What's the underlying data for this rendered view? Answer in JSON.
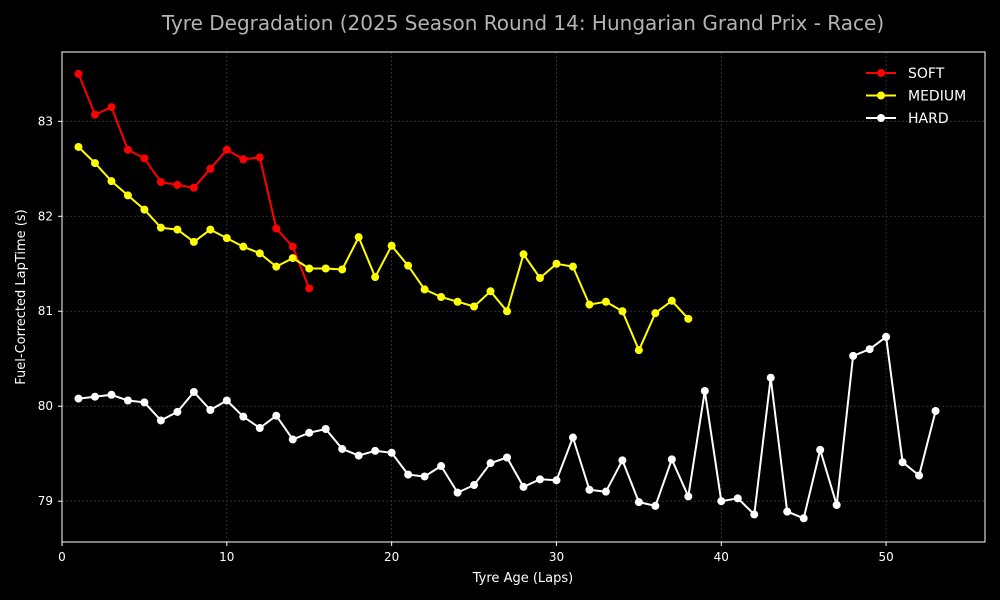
{
  "chart_data": {
    "type": "line",
    "title": "Tyre Degradation (2025 Season Round 14: Hungarian Grand Prix - Race)",
    "xlabel": "Tyre Age (Laps)",
    "ylabel": "Fuel-Corrected LapTime (s)",
    "xlim": [
      0,
      56
    ],
    "ylim": [
      78.57,
      83.73
    ],
    "xticks": [
      0,
      10,
      20,
      30,
      40,
      50
    ],
    "yticks": [
      79,
      80,
      81,
      82,
      83
    ],
    "grid": true,
    "legend_position": "top-right",
    "series": [
      {
        "name": "SOFT",
        "color": "#ff0000",
        "x": [
          1,
          2,
          3,
          4,
          5,
          6,
          7,
          8,
          9,
          10,
          11,
          12,
          13,
          14,
          15
        ],
        "y": [
          83.5,
          83.07,
          83.15,
          82.7,
          82.61,
          82.36,
          82.33,
          82.3,
          82.5,
          82.7,
          82.6,
          82.62,
          81.87,
          81.68,
          81.24
        ]
      },
      {
        "name": "MEDIUM",
        "color": "#ffff00",
        "x": [
          1,
          2,
          3,
          4,
          5,
          6,
          7,
          8,
          9,
          10,
          11,
          12,
          13,
          14,
          15,
          16,
          17,
          18,
          19,
          20,
          21,
          22,
          23,
          24,
          25,
          26,
          27,
          28,
          29,
          30,
          31,
          32,
          33,
          34,
          35,
          36,
          37,
          38
        ],
        "y": [
          82.73,
          82.56,
          82.37,
          82.22,
          82.07,
          81.88,
          81.86,
          81.73,
          81.86,
          81.77,
          81.68,
          81.61,
          81.47,
          81.56,
          81.45,
          81.45,
          81.44,
          81.78,
          81.36,
          81.69,
          81.48,
          81.23,
          81.15,
          81.1,
          81.05,
          81.21,
          81.0,
          81.6,
          81.35,
          81.5,
          81.47,
          81.07,
          81.1,
          81.0,
          80.59,
          80.98,
          81.11,
          80.92
        ]
      },
      {
        "name": "HARD",
        "color": "#ffffff",
        "x": [
          1,
          2,
          3,
          4,
          5,
          6,
          7,
          8,
          9,
          10,
          11,
          12,
          13,
          14,
          15,
          16,
          17,
          18,
          19,
          20,
          21,
          22,
          23,
          24,
          25,
          26,
          27,
          28,
          29,
          30,
          31,
          32,
          33,
          34,
          35,
          36,
          37,
          38,
          39,
          40,
          41,
          42,
          43,
          44,
          45,
          46,
          47,
          48,
          49,
          50,
          51,
          52,
          53
        ],
        "y": [
          80.08,
          80.1,
          80.12,
          80.06,
          80.04,
          79.85,
          79.94,
          80.15,
          79.96,
          80.06,
          79.89,
          79.77,
          79.9,
          79.65,
          79.72,
          79.76,
          79.55,
          79.48,
          79.53,
          79.51,
          79.28,
          79.26,
          79.37,
          79.09,
          79.17,
          79.4,
          79.46,
          79.15,
          79.23,
          79.22,
          79.67,
          79.12,
          79.1,
          79.43,
          78.99,
          78.95,
          79.44,
          79.05,
          80.16,
          79.0,
          79.03,
          78.86,
          80.3,
          78.89,
          78.82,
          79.54,
          78.96,
          80.53,
          80.6,
          80.73,
          79.41,
          79.27,
          79.95
        ]
      }
    ]
  }
}
